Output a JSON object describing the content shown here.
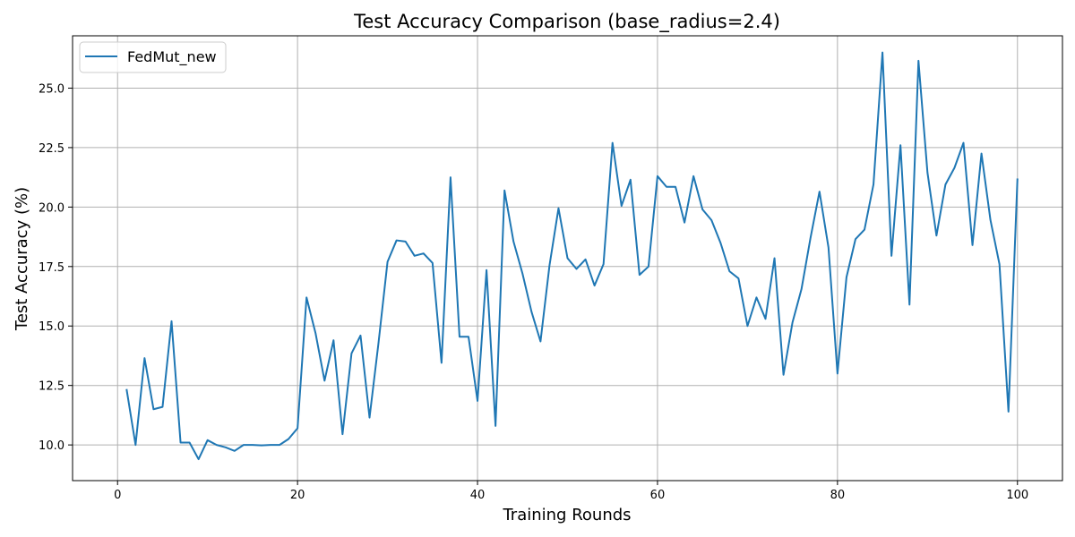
{
  "chart_data": {
    "type": "line",
    "title": "Test Accuracy Comparison (base_radius=2.4)",
    "xlabel": "Training Rounds",
    "ylabel": "Test Accuracy (%)",
    "xlim": [
      -5,
      105
    ],
    "ylim": [
      8.5,
      27.2
    ],
    "xticks": [
      0,
      20,
      40,
      60,
      80,
      100
    ],
    "yticks": [
      10.0,
      12.5,
      15.0,
      17.5,
      20.0,
      22.5,
      25.0
    ],
    "xtick_labels": [
      "0",
      "20",
      "40",
      "60",
      "80",
      "100"
    ],
    "ytick_labels": [
      "10.0",
      "12.5",
      "15.0",
      "17.5",
      "20.0",
      "22.5",
      "25.0"
    ],
    "grid": true,
    "legend_position": "top-left",
    "colors": {
      "series": "#1f77b4",
      "grid": "#b0b0b0",
      "axis": "#000000"
    },
    "series": [
      {
        "name": "FedMut_new",
        "x": [
          1,
          2,
          3,
          4,
          5,
          6,
          7,
          8,
          9,
          10,
          11,
          12,
          13,
          14,
          15,
          16,
          17,
          18,
          19,
          20,
          21,
          22,
          23,
          24,
          25,
          26,
          27,
          28,
          29,
          30,
          31,
          32,
          33,
          34,
          35,
          36,
          37,
          38,
          39,
          40,
          41,
          42,
          43,
          44,
          45,
          46,
          47,
          48,
          49,
          50,
          51,
          52,
          53,
          54,
          55,
          56,
          57,
          58,
          59,
          60,
          61,
          62,
          63,
          64,
          65,
          66,
          67,
          68,
          69,
          70,
          71,
          72,
          73,
          74,
          75,
          76,
          77,
          78,
          79,
          80,
          81,
          82,
          83,
          84,
          85,
          86,
          87,
          88,
          89,
          90,
          91,
          92,
          93,
          94,
          95,
          96,
          97,
          98,
          99,
          100
        ],
        "values": [
          12.35,
          10.0,
          13.65,
          11.5,
          11.6,
          15.2,
          10.1,
          10.1,
          9.4,
          10.2,
          10.0,
          9.9,
          9.75,
          10.0,
          10.0,
          9.98,
          10.0,
          10.0,
          10.25,
          10.7,
          16.2,
          14.7,
          12.7,
          14.4,
          10.45,
          13.85,
          14.6,
          11.15,
          14.3,
          17.7,
          18.6,
          18.55,
          17.95,
          18.05,
          17.65,
          13.45,
          21.25,
          14.55,
          14.55,
          11.85,
          17.35,
          10.8,
          20.7,
          18.55,
          17.2,
          15.6,
          14.35,
          17.55,
          19.95,
          17.85,
          17.4,
          17.8,
          16.7,
          17.6,
          22.7,
          20.05,
          21.15,
          17.15,
          17.5,
          21.3,
          20.85,
          20.85,
          19.35,
          21.3,
          19.9,
          19.45,
          18.5,
          17.3,
          17.0,
          15.0,
          16.2,
          15.3,
          17.85,
          12.95,
          15.15,
          16.55,
          18.7,
          20.65,
          18.3,
          13.0,
          17.05,
          18.65,
          19.05,
          20.95,
          26.5,
          17.95,
          22.6,
          15.9,
          26.15,
          21.45,
          18.8,
          20.95,
          21.65,
          22.7,
          18.4,
          22.25,
          19.45,
          17.6,
          11.4,
          21.2
        ]
      }
    ]
  }
}
